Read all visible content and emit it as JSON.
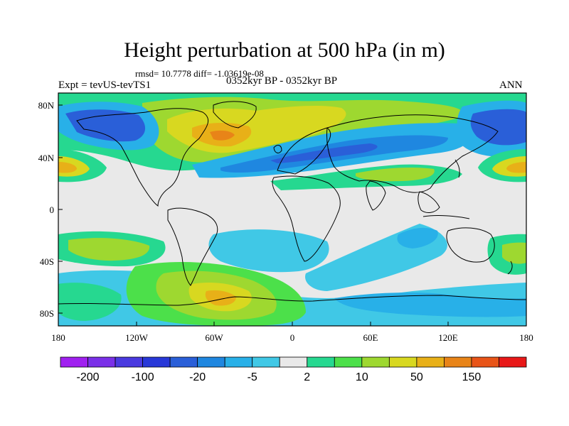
{
  "title": "Height perturbation at 500 hPa (in m)",
  "stats": "rmsd= 10.7778 diff= -1.03619e-08",
  "left_label": "Expt = tevUS-tevTS1",
  "center_label": "0352kyr BP - 0352kyr BP",
  "right_label": "ANN",
  "lat_ticks": [
    "80N",
    "40N",
    "0",
    "40S",
    "80S"
  ],
  "lon_ticks": [
    "180",
    "120W",
    "60W",
    "0",
    "60E",
    "120E",
    "180"
  ],
  "colorbar": {
    "colors": [
      "#a020f0",
      "#7a30e8",
      "#4a3ae0",
      "#2838d8",
      "#2a5fd8",
      "#1f87e0",
      "#28b0e8",
      "#40c8e6",
      "#e9e9e9",
      "#26d890",
      "#4ce04a",
      "#9ed830",
      "#d8d820",
      "#e8b018",
      "#e88418",
      "#e85418",
      "#e81818"
    ],
    "labels": [
      "-200",
      "-100",
      "-20",
      "-5",
      "2",
      "10",
      "50",
      "150"
    ]
  },
  "field_colors": {
    "neutral": "#e9e9e9",
    "light_blue": "#40c8e6",
    "mid_blue": "#28b0e8",
    "blue": "#1f87e0",
    "dark_blue": "#2a5fd8",
    "green": "#4ce04a",
    "teal_green": "#26d890",
    "yellow_green": "#9ed830",
    "yellow": "#d8d820",
    "orange": "#e8b018",
    "deep_orange": "#e88418"
  }
}
